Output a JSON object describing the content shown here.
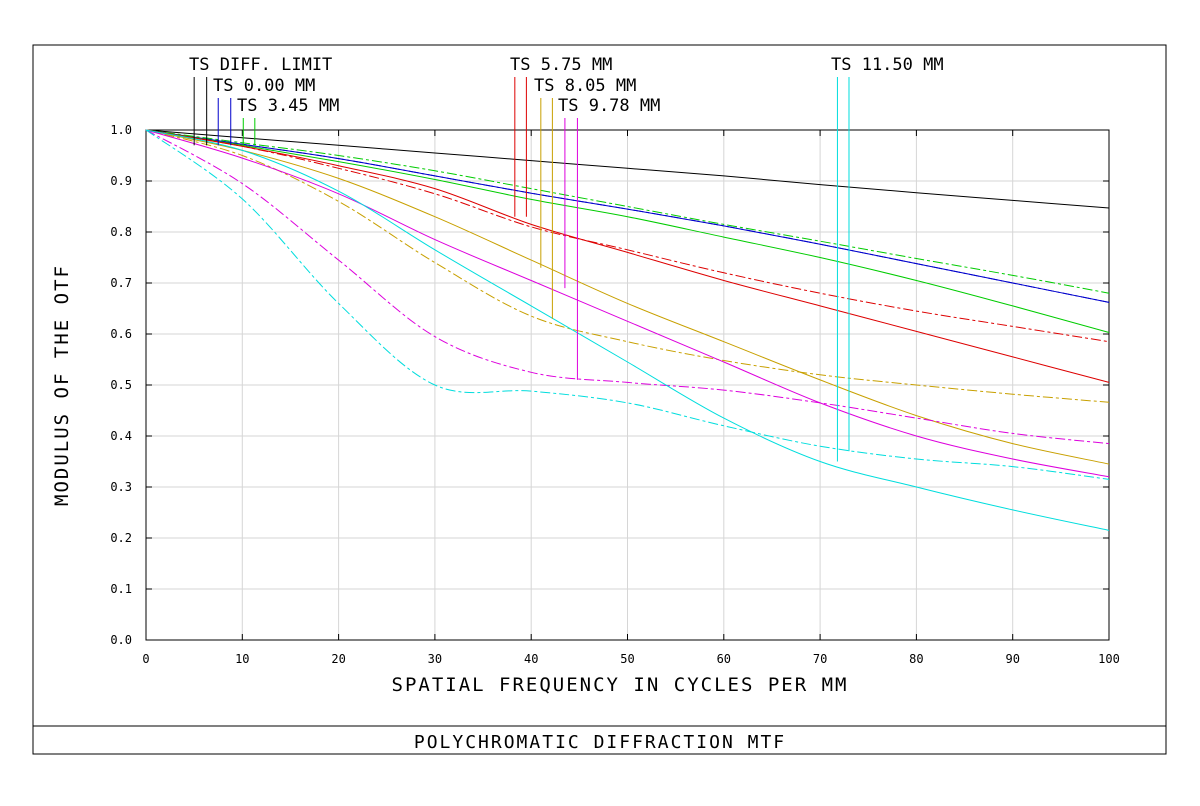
{
  "chart_data": {
    "type": "line",
    "title": "POLYCHROMATIC DIFFRACTION MTF",
    "xlabel": "SPATIAL FREQUENCY IN CYCLES PER MM",
    "ylabel": "MODULUS OF THE OTF",
    "xlim": [
      0,
      100
    ],
    "ylim": [
      0,
      1
    ],
    "xticks": [
      "0",
      "10",
      "20",
      "30",
      "40",
      "50",
      "60",
      "70",
      "80",
      "90",
      "100"
    ],
    "yticks": [
      "0.0",
      "0.1",
      "0.2",
      "0.3",
      "0.4",
      "0.5",
      "0.6",
      "0.7",
      "0.8",
      "0.9",
      "1.0"
    ],
    "grid": true,
    "legend_placement": "top",
    "x": [
      0,
      10,
      20,
      30,
      40,
      50,
      60,
      70,
      80,
      90,
      100
    ],
    "series": [
      {
        "name": "TS DIFF. LIMIT",
        "color": "#000000",
        "dash": "solid",
        "values": [
          1.0,
          0.985,
          0.97,
          0.955,
          0.94,
          0.925,
          0.91,
          0.893,
          0.877,
          0.862,
          0.847
        ]
      },
      {
        "name": "TS 0.00 MM",
        "color": "#0000cc",
        "dash": "solid",
        "values": [
          1.0,
          0.972,
          0.944,
          0.91,
          0.876,
          0.845,
          0.812,
          0.776,
          0.738,
          0.7,
          0.662
        ]
      },
      {
        "name": "TS 0.00 MM",
        "color": "#0000cc",
        "dash": "dash",
        "values": [
          1.0,
          0.972,
          0.944,
          0.91,
          0.876,
          0.845,
          0.812,
          0.776,
          0.738,
          0.7,
          0.662
        ]
      },
      {
        "name": "TS 3.45 MM",
        "color": "#00cc00",
        "dash": "solid",
        "values": [
          1.0,
          0.97,
          0.938,
          0.903,
          0.864,
          0.83,
          0.79,
          0.75,
          0.705,
          0.655,
          0.603
        ]
      },
      {
        "name": "TS 3.45 MM",
        "color": "#00cc00",
        "dash": "dash",
        "values": [
          1.0,
          0.975,
          0.95,
          0.92,
          0.885,
          0.85,
          0.815,
          0.782,
          0.748,
          0.715,
          0.68
        ]
      },
      {
        "name": "TS 5.75 MM",
        "color": "#dd0000",
        "dash": "solid",
        "values": [
          1.0,
          0.968,
          0.93,
          0.885,
          0.815,
          0.76,
          0.705,
          0.655,
          0.605,
          0.555,
          0.505
        ]
      },
      {
        "name": "TS 5.75 MM",
        "color": "#dd0000",
        "dash": "dash",
        "values": [
          1.0,
          0.968,
          0.925,
          0.875,
          0.81,
          0.765,
          0.72,
          0.68,
          0.645,
          0.615,
          0.585
        ]
      },
      {
        "name": "TS 8.05 MM",
        "color": "#c8a000",
        "dash": "solid",
        "values": [
          1.0,
          0.96,
          0.905,
          0.83,
          0.745,
          0.66,
          0.585,
          0.51,
          0.44,
          0.385,
          0.345
        ]
      },
      {
        "name": "TS 8.05 MM",
        "color": "#c8a000",
        "dash": "dash",
        "values": [
          1.0,
          0.95,
          0.86,
          0.74,
          0.635,
          0.585,
          0.548,
          0.52,
          0.5,
          0.482,
          0.466
        ]
      },
      {
        "name": "TS 9.78 MM",
        "color": "#dd00dd",
        "dash": "solid",
        "values": [
          1.0,
          0.945,
          0.875,
          0.785,
          0.705,
          0.625,
          0.545,
          0.465,
          0.4,
          0.355,
          0.32
        ]
      },
      {
        "name": "TS 9.78 MM",
        "color": "#dd00dd",
        "dash": "dash",
        "values": [
          1.0,
          0.895,
          0.745,
          0.595,
          0.525,
          0.505,
          0.49,
          0.465,
          0.435,
          0.405,
          0.385
        ]
      },
      {
        "name": "TS 11.50 MM",
        "color": "#00dddd",
        "dash": "solid",
        "values": [
          1.0,
          0.96,
          0.88,
          0.765,
          0.655,
          0.545,
          0.435,
          0.35,
          0.3,
          0.255,
          0.215
        ]
      },
      {
        "name": "TS 11.50 MM",
        "color": "#00dddd",
        "dash": "dash",
        "values": [
          1.0,
          0.865,
          0.66,
          0.5,
          0.488,
          0.465,
          0.42,
          0.38,
          0.355,
          0.34,
          0.315
        ]
      }
    ],
    "legend": [
      {
        "label": "TS DIFF. LIMIT",
        "color": "#000000",
        "markers": [
          {
            "x": 5.0,
            "y": 0.97
          },
          {
            "x": 6.3,
            "y": 0.97
          }
        ]
      },
      {
        "label": "TS 0.00 MM",
        "color": "#0000cc",
        "markers": [
          {
            "x": 7.5,
            "y": 0.97
          },
          {
            "x": 8.8,
            "y": 0.97
          }
        ]
      },
      {
        "label": "TS 3.45 MM",
        "color": "#00cc00",
        "markers": [
          {
            "x": 10.1,
            "y": 0.97
          },
          {
            "x": 11.3,
            "y": 0.97
          }
        ]
      },
      {
        "label": "TS 5.75 MM",
        "color": "#dd0000",
        "markers": [
          {
            "x": 38.3,
            "y": 0.83
          },
          {
            "x": 39.5,
            "y": 0.83
          }
        ]
      },
      {
        "label": "TS 8.05 MM",
        "color": "#c8a000",
        "markers": [
          {
            "x": 41.0,
            "y": 0.73
          },
          {
            "x": 42.2,
            "y": 0.63
          }
        ]
      },
      {
        "label": "TS 9.78 MM",
        "color": "#dd00dd",
        "markers": [
          {
            "x": 43.5,
            "y": 0.69
          },
          {
            "x": 44.8,
            "y": 0.51
          }
        ]
      },
      {
        "label": "TS 11.50 MM",
        "color": "#00dddd",
        "markers": [
          {
            "x": 71.8,
            "y": 0.35
          },
          {
            "x": 73.0,
            "y": 0.37
          }
        ]
      }
    ]
  }
}
